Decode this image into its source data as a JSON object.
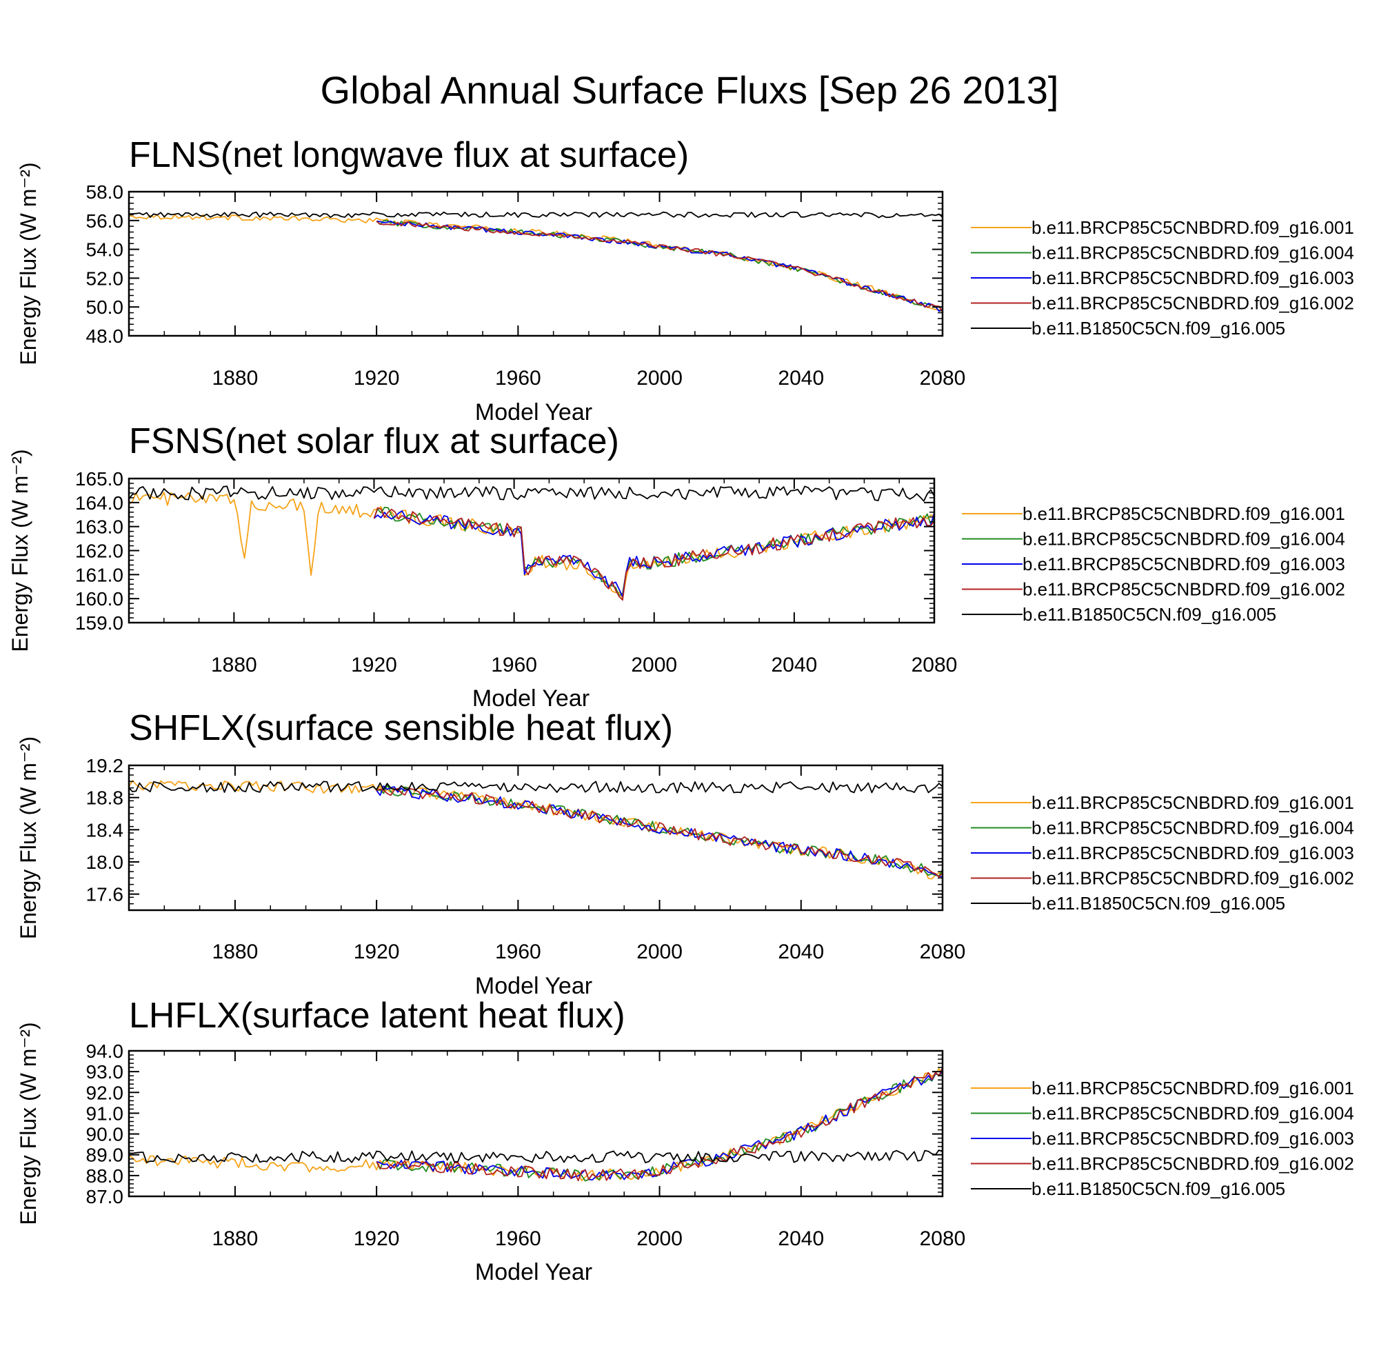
{
  "figure_title": "Global Annual Surface Fluxs [Sep 26 2013]",
  "colors": {
    "b.e11.BRCP85C5CNBDRD.f09_g16.001": "#f5a31a",
    "b.e11.BRCP85C5CNBDRD.f09_g16.004": "#228b22",
    "b.e11.BRCP85C5CNBDRD.f09_g16.003": "#0000ee",
    "b.e11.BRCP85C5CNBDRD.f09_g16.002": "#b22222",
    "b.e11.B1850C5CN.f09_g16.005": "#000000"
  },
  "chart_data": [
    {
      "type": "line",
      "title": "FLNS(net longwave flux at surface)",
      "ylabel": "Energy Flux (W m⁻²)",
      "xlabel": "Model Year",
      "xlim": [
        1850,
        2080
      ],
      "ylim": [
        48,
        58
      ],
      "xticks": [
        "1880",
        "1920",
        "1960",
        "2000",
        "2040",
        "2080"
      ],
      "yticks": [
        "58.0",
        "56.0",
        "54.0",
        "52.0",
        "50.0",
        "48.0"
      ],
      "legend": [
        "b.e11.BRCP85C5CNBDRD.f09_g16.001",
        "b.e11.BRCP85C5CNBDRD.f09_g16.004",
        "b.e11.BRCP85C5CNBDRD.f09_g16.003",
        "b.e11.BRCP85C5CNBDRD.f09_g16.002",
        "b.e11.B1850C5CN.f09_g16.005"
      ],
      "series": [
        {
          "name": "b.e11.BRCP85C5CNBDRD.f09_g16.001",
          "x": [
            1850,
            1880,
            1920,
            1960,
            1980,
            2000,
            2020,
            2040,
            2060,
            2080
          ],
          "values": [
            56.3,
            56.2,
            56.0,
            55.3,
            54.9,
            54.3,
            53.6,
            52.6,
            51.3,
            49.6
          ]
        },
        {
          "name": "b.e11.BRCP85C5CNBDRD.f09_g16.004",
          "x": [
            1920,
            1960,
            1980,
            2000,
            2020,
            2040,
            2060,
            2080
          ],
          "values": [
            55.9,
            55.2,
            54.8,
            54.2,
            53.6,
            52.6,
            51.2,
            49.8
          ]
        },
        {
          "name": "b.e11.BRCP85C5CNBDRD.f09_g16.003",
          "x": [
            1920,
            1960,
            1980,
            2000,
            2020,
            2040,
            2060,
            2080
          ],
          "values": [
            55.9,
            55.2,
            54.8,
            54.2,
            53.6,
            52.6,
            51.2,
            49.8
          ]
        },
        {
          "name": "b.e11.BRCP85C5CNBDRD.f09_g16.002",
          "x": [
            1920,
            1960,
            1980,
            2000,
            2020,
            2040,
            2060,
            2080
          ],
          "values": [
            55.9,
            55.2,
            54.8,
            54.2,
            53.6,
            52.6,
            51.2,
            49.8
          ]
        },
        {
          "name": "b.e11.B1850C5CN.f09_g16.005",
          "x": [
            1850,
            1900,
            1950,
            2000,
            2050,
            2080
          ],
          "values": [
            56.4,
            56.4,
            56.4,
            56.4,
            56.4,
            56.3
          ]
        }
      ]
    },
    {
      "type": "line",
      "title": "FSNS(net solar flux at surface)",
      "ylabel": "Energy Flux (W m⁻²)",
      "xlabel": "Model Year",
      "xlim": [
        1850,
        2080
      ],
      "ylim": [
        159,
        165
      ],
      "xticks": [
        "1880",
        "1920",
        "1960",
        "2000",
        "2040",
        "2080"
      ],
      "yticks": [
        "165.0",
        "164.0",
        "163.0",
        "162.0",
        "161.0",
        "160.0",
        "159.0"
      ],
      "legend": [
        "b.e11.BRCP85C5CNBDRD.f09_g16.001",
        "b.e11.BRCP85C5CNBDRD.f09_g16.004",
        "b.e11.BRCP85C5CNBDRD.f09_g16.003",
        "b.e11.BRCP85C5CNBDRD.f09_g16.002",
        "b.e11.B1850C5CN.f09_g16.005"
      ],
      "series": [
        {
          "name": "b.e11.BRCP85C5CNBDRD.f09_g16.001",
          "x": [
            1850,
            1880,
            1883,
            1885,
            1900,
            1902,
            1904,
            1920,
            1940,
            1962,
            1963,
            1966,
            1980,
            1991,
            1993,
            2000,
            2020,
            2040,
            2060,
            2080
          ],
          "values": [
            164.2,
            164.1,
            161.7,
            163.9,
            163.9,
            160.9,
            163.8,
            163.6,
            163.2,
            162.8,
            160.7,
            161.6,
            161.4,
            160.1,
            161.4,
            161.4,
            161.9,
            162.4,
            162.9,
            163.3
          ]
        },
        {
          "name": "b.e11.BRCP85C5CNBDRD.f09_g16.004",
          "x": [
            1920,
            1940,
            1962,
            1963,
            1966,
            1980,
            1991,
            1993,
            2000,
            2020,
            2040,
            2060,
            2080
          ],
          "values": [
            163.6,
            163.2,
            162.8,
            161.1,
            161.6,
            161.5,
            160.2,
            161.5,
            161.5,
            161.9,
            162.4,
            162.9,
            163.3
          ]
        },
        {
          "name": "b.e11.BRCP85C5CNBDRD.f09_g16.003",
          "x": [
            1920,
            1940,
            1962,
            1963,
            1966,
            1980,
            1991,
            1993,
            2000,
            2020,
            2040,
            2060,
            2080
          ],
          "values": [
            163.6,
            163.2,
            162.8,
            161.1,
            161.6,
            161.5,
            160.2,
            161.5,
            161.5,
            161.9,
            162.4,
            162.9,
            163.3
          ]
        },
        {
          "name": "b.e11.BRCP85C5CNBDRD.f09_g16.002",
          "x": [
            1920,
            1940,
            1962,
            1963,
            1966,
            1980,
            1991,
            1993,
            2000,
            2020,
            2040,
            2060,
            2080
          ],
          "values": [
            163.6,
            163.2,
            162.8,
            161.1,
            161.6,
            161.5,
            160.2,
            161.5,
            161.5,
            161.9,
            162.4,
            162.9,
            163.3
          ]
        },
        {
          "name": "b.e11.B1850C5CN.f09_g16.005",
          "x": [
            1850,
            1900,
            1950,
            2000,
            2050,
            2080
          ],
          "values": [
            164.4,
            164.4,
            164.4,
            164.4,
            164.4,
            164.3
          ]
        }
      ]
    },
    {
      "type": "line",
      "title": "SHFLX(surface sensible heat flux)",
      "ylabel": "Energy Flux (W m⁻²)",
      "xlabel": "Model Year",
      "xlim": [
        1850,
        2080
      ],
      "ylim": [
        17.4,
        19.2
      ],
      "xticks": [
        "1880",
        "1920",
        "1960",
        "2000",
        "2040",
        "2080"
      ],
      "yticks": [
        "19.2",
        "18.8",
        "18.4",
        "18.0",
        "17.6"
      ],
      "legend": [
        "b.e11.BRCP85C5CNBDRD.f09_g16.001",
        "b.e11.BRCP85C5CNBDRD.f09_g16.004",
        "b.e11.BRCP85C5CNBDRD.f09_g16.003",
        "b.e11.BRCP85C5CNBDRD.f09_g16.002",
        "b.e11.B1850C5CN.f09_g16.005"
      ],
      "series": [
        {
          "name": "b.e11.BRCP85C5CNBDRD.f09_g16.001",
          "x": [
            1850,
            1880,
            1920,
            1950,
            1970,
            1990,
            2010,
            2030,
            2050,
            2065,
            2080
          ],
          "values": [
            18.95,
            18.95,
            18.9,
            18.78,
            18.65,
            18.5,
            18.35,
            18.2,
            18.1,
            18.0,
            17.8
          ]
        },
        {
          "name": "b.e11.BRCP85C5CNBDRD.f09_g16.004",
          "x": [
            1920,
            1950,
            1970,
            1990,
            2010,
            2030,
            2050,
            2065,
            2080
          ],
          "values": [
            18.9,
            18.78,
            18.65,
            18.5,
            18.35,
            18.2,
            18.1,
            18.0,
            17.85
          ]
        },
        {
          "name": "b.e11.BRCP85C5CNBDRD.f09_g16.003",
          "x": [
            1920,
            1950,
            1970,
            1990,
            2010,
            2030,
            2050,
            2065,
            2080
          ],
          "values": [
            18.9,
            18.78,
            18.65,
            18.5,
            18.35,
            18.2,
            18.1,
            18.0,
            17.85
          ]
        },
        {
          "name": "b.e11.BRCP85C5CNBDRD.f09_g16.002",
          "x": [
            1920,
            1950,
            1970,
            1990,
            2010,
            2030,
            2050,
            2065,
            2080
          ],
          "values": [
            18.9,
            18.78,
            18.65,
            18.5,
            18.35,
            18.2,
            18.1,
            18.0,
            17.85
          ]
        },
        {
          "name": "b.e11.B1850C5CN.f09_g16.005",
          "x": [
            1850,
            1900,
            1950,
            2000,
            2050,
            2080
          ],
          "values": [
            18.93,
            18.93,
            18.93,
            18.93,
            18.93,
            18.92
          ]
        }
      ]
    },
    {
      "type": "line",
      "title": "LHFLX(surface latent heat flux)",
      "ylabel": "Energy Flux (W m⁻²)",
      "xlabel": "Model Year",
      "xlim": [
        1850,
        2080
      ],
      "ylim": [
        87,
        94
      ],
      "xticks": [
        "1880",
        "1920",
        "1960",
        "2000",
        "2040",
        "2080"
      ],
      "yticks": [
        "94.0",
        "93.0",
        "92.0",
        "91.0",
        "90.0",
        "89.0",
        "88.0",
        "87.0"
      ],
      "legend": [
        "b.e11.BRCP85C5CNBDRD.f09_g16.001",
        "b.e11.BRCP85C5CNBDRD.f09_g16.004",
        "b.e11.BRCP85C5CNBDRD.f09_g16.003",
        "b.e11.BRCP85C5CNBDRD.f09_g16.002",
        "b.e11.B1850C5CN.f09_g16.005"
      ],
      "series": [
        {
          "name": "b.e11.BRCP85C5CNBDRD.f09_g16.001",
          "x": [
            1850,
            1880,
            1900,
            1920,
            1940,
            1960,
            1980,
            1995,
            2010,
            2020,
            2030,
            2040,
            2050,
            2060,
            2070,
            2080
          ],
          "values": [
            88.8,
            88.6,
            88.4,
            88.5,
            88.4,
            88.2,
            88.0,
            88.1,
            88.6,
            89.0,
            89.5,
            90.1,
            90.9,
            91.7,
            92.4,
            93.0
          ]
        },
        {
          "name": "b.e11.BRCP85C5CNBDRD.f09_g16.004",
          "x": [
            1920,
            1940,
            1960,
            1980,
            1995,
            2010,
            2020,
            2030,
            2040,
            2050,
            2060,
            2070,
            2080
          ],
          "values": [
            88.5,
            88.4,
            88.2,
            88.0,
            88.1,
            88.6,
            89.0,
            89.5,
            90.1,
            90.9,
            91.7,
            92.4,
            93.0
          ]
        },
        {
          "name": "b.e11.BRCP85C5CNBDRD.f09_g16.003",
          "x": [
            1920,
            1940,
            1960,
            1980,
            1995,
            2010,
            2020,
            2030,
            2040,
            2050,
            2060,
            2070,
            2080
          ],
          "values": [
            88.5,
            88.4,
            88.2,
            88.0,
            88.1,
            88.6,
            89.0,
            89.5,
            90.1,
            90.9,
            91.7,
            92.4,
            93.0
          ]
        },
        {
          "name": "b.e11.BRCP85C5CNBDRD.f09_g16.002",
          "x": [
            1920,
            1940,
            1960,
            1980,
            1995,
            2010,
            2020,
            2030,
            2040,
            2050,
            2060,
            2070,
            2080
          ],
          "values": [
            88.5,
            88.4,
            88.2,
            88.0,
            88.1,
            88.6,
            89.0,
            89.5,
            90.1,
            90.9,
            91.7,
            92.4,
            93.0
          ]
        },
        {
          "name": "b.e11.B1850C5CN.f09_g16.005",
          "x": [
            1850,
            1900,
            1950,
            2000,
            2050,
            2080
          ],
          "values": [
            88.9,
            88.9,
            88.9,
            88.9,
            88.9,
            89.0
          ]
        }
      ]
    }
  ]
}
